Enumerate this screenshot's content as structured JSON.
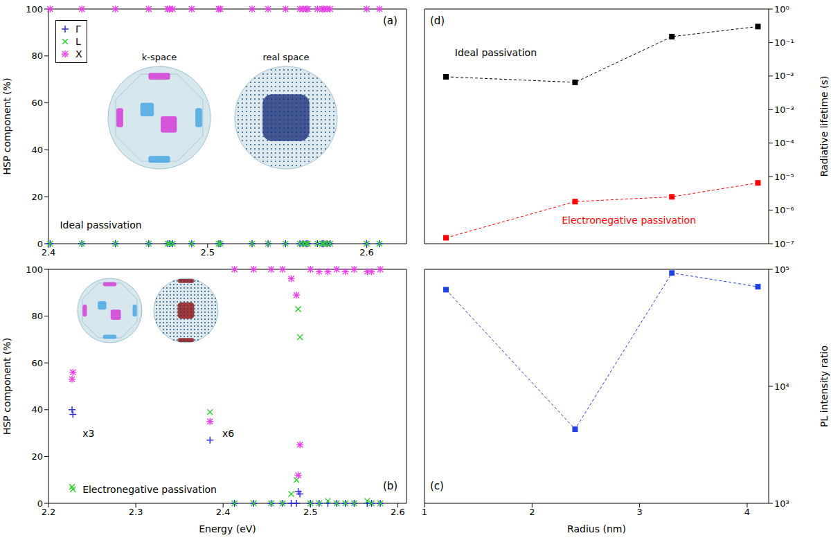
{
  "chart_data": [
    {
      "type": "scatter",
      "title": "(a)",
      "ylabel": "HSP component (%)",
      "x": [
        2.401,
        2.421,
        2.442,
        2.463,
        2.475,
        2.476,
        2.478,
        2.49,
        2.507,
        2.508,
        2.528,
        2.538,
        2.549,
        2.558,
        2.56,
        2.562,
        2.563,
        2.569,
        2.572,
        2.573,
        2.575,
        2.577,
        2.6,
        2.608
      ],
      "series": [
        {
          "name": "Γ",
          "color": "#2222dd",
          "marker": "plus",
          "values": [
            0,
            0,
            0,
            0,
            0,
            0,
            0,
            0,
            0,
            0,
            0,
            0,
            0,
            0,
            0,
            0,
            0,
            0,
            0,
            0,
            0,
            0,
            0,
            0
          ]
        },
        {
          "name": "L",
          "color": "#2ecc2e",
          "marker": "x",
          "values": [
            0,
            0,
            0,
            0,
            0,
            0,
            0,
            0,
            0,
            0,
            0,
            0,
            0,
            0,
            0,
            0,
            0,
            0,
            0,
            0,
            0,
            0,
            0,
            0
          ]
        },
        {
          "name": "X",
          "color": "#e83ee8",
          "marker": "star",
          "values": [
            100,
            100,
            100,
            100,
            100,
            100,
            100,
            100,
            100,
            100,
            100,
            100,
            100,
            100,
            100,
            100,
            100,
            100,
            100,
            100,
            100,
            100,
            100,
            100
          ]
        }
      ],
      "xlim": [
        2.4,
        2.625
      ],
      "xticks": [
        2.4,
        2.5,
        2.6
      ],
      "ylim": [
        0,
        100
      ],
      "yticks": [
        0,
        20,
        40,
        60,
        80,
        100
      ],
      "legend": "upper left",
      "annotations": [
        "Ideal passivation",
        "k-space",
        "real space"
      ]
    },
    {
      "type": "line",
      "title": "(d)",
      "ylabel": "Radiative lifetime (s)",
      "x": [
        1.2,
        2.4,
        3.3,
        4.1
      ],
      "series": [
        {
          "name": "Ideal passivation",
          "color": "#000000",
          "marker": "square",
          "line_style": "dashed",
          "values": [
            0.0095,
            0.0065,
            0.15,
            0.3
          ]
        },
        {
          "name": "Electronegative passivation",
          "color": "#ff0000",
          "marker": "square",
          "line_style": "dashed",
          "values": [
            1.5e-07,
            1.8e-06,
            2.5e-06,
            6.5e-06
          ]
        }
      ],
      "xlim": [
        1,
        4.2
      ],
      "xticks": [
        1,
        2,
        3,
        4
      ],
      "ylim": [
        1e-07,
        1
      ],
      "yticks": [
        {
          "value": 1e-07,
          "label": "10⁻⁷"
        },
        {
          "value": 1e-06,
          "label": "10⁻⁶"
        },
        {
          "value": 1e-05,
          "label": "10⁻⁵"
        },
        {
          "value": 0.0001,
          "label": "10⁻⁴"
        },
        {
          "value": 0.001,
          "label": "10⁻³"
        },
        {
          "value": 0.01,
          "label": "10⁻²"
        },
        {
          "value": 0.1,
          "label": "10⁻¹"
        },
        {
          "value": 1,
          "label": "10⁰"
        }
      ],
      "log": "y",
      "tick_labels": "y"
    },
    {
      "type": "scatter",
      "title": "(b)",
      "xlabel": "Energy (eV)",
      "ylabel": "HSP component (%)",
      "x": [
        2.227,
        2.228,
        2.385,
        2.413,
        2.435,
        2.455,
        2.468,
        2.478,
        2.484,
        2.486,
        2.488,
        2.5,
        2.51,
        2.52,
        2.53,
        2.54,
        2.55,
        2.565,
        2.57,
        2.58
      ],
      "series": [
        {
          "name": "Γ",
          "color": "#2222dd",
          "marker": "plus",
          "values": [
            40,
            38,
            27,
            0,
            0,
            0,
            0,
            0,
            0,
            5,
            4,
            0,
            0,
            0,
            0,
            0,
            0,
            0,
            0,
            0
          ]
        },
        {
          "name": "L",
          "color": "#2ecc2e",
          "marker": "x",
          "values": [
            7,
            6,
            39,
            0,
            0,
            0,
            0,
            4,
            10,
            83,
            71,
            0,
            0,
            1,
            0,
            0,
            0,
            1,
            0,
            0
          ]
        },
        {
          "name": "X",
          "color": "#e83ee8",
          "marker": "star",
          "values": [
            53,
            56,
            35,
            100,
            100,
            100,
            100,
            96,
            89,
            12,
            25,
            100,
            99,
            99,
            100,
            99,
            100,
            99,
            99,
            100
          ]
        }
      ],
      "xlim": [
        2.2,
        2.61
      ],
      "xticks": [
        2.2,
        2.3,
        2.4,
        2.5,
        2.6
      ],
      "ylim": [
        0,
        100
      ],
      "yticks": [
        0,
        20,
        40,
        60,
        80,
        100
      ],
      "annotations": [
        "x3",
        "x6",
        "Electronegative passivation"
      ]
    },
    {
      "type": "line",
      "title": "(c)",
      "xlabel": "Radius (nm)",
      "ylabel": "PL intensity ratio",
      "x": [
        1.2,
        2.4,
        3.3,
        4.1
      ],
      "values": [
        67000,
        4300,
        93000,
        71000
      ],
      "color": "#2040e0",
      "marker": "square",
      "line_style": "dashed",
      "xlim": [
        1,
        4.2
      ],
      "xticks": [
        1,
        2,
        3,
        4
      ],
      "ylim": [
        1000,
        100000
      ],
      "yticks": [
        {
          "value": 1000,
          "label": "10³"
        },
        {
          "value": 10000,
          "label": "10⁴"
        },
        {
          "value": 100000,
          "label": "10⁵"
        }
      ],
      "log": "y"
    }
  ]
}
